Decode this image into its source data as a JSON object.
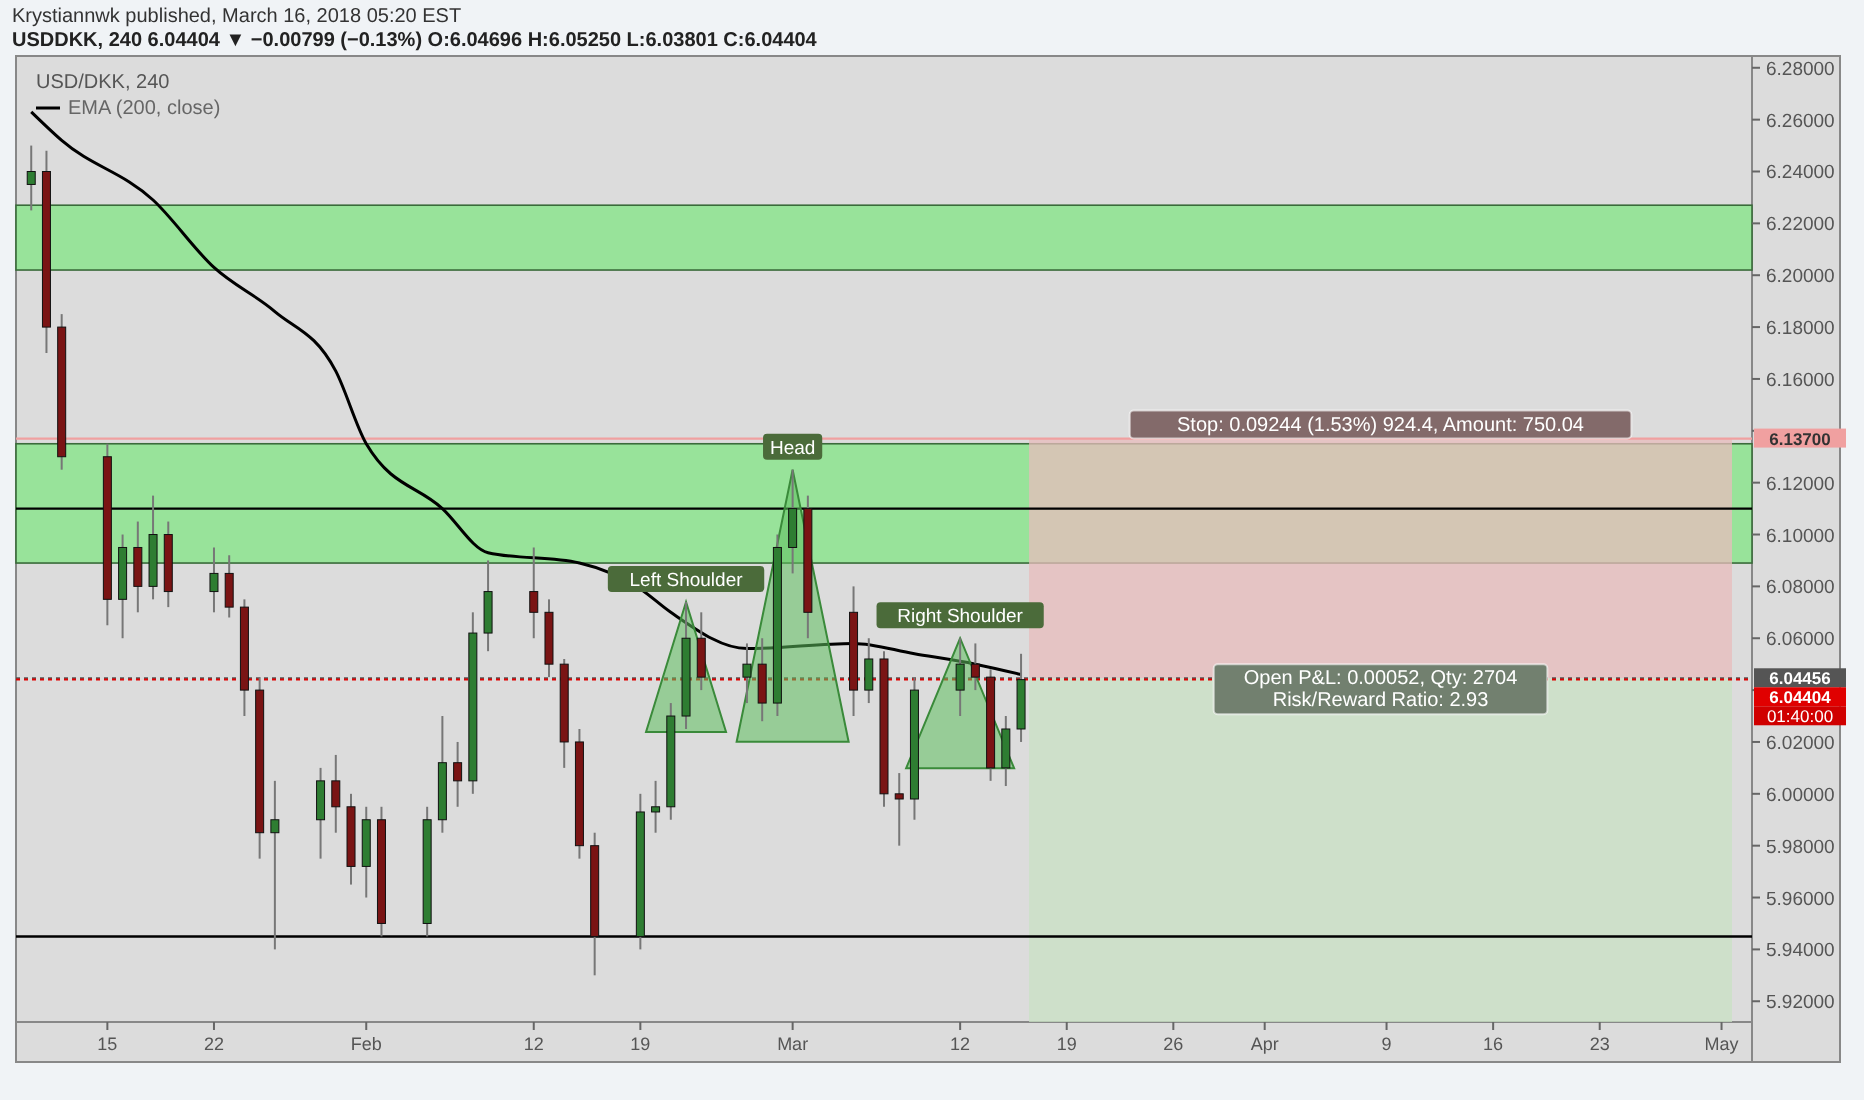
{
  "chart_data": {
    "type": "candlestick",
    "title": "Krystiannwk published, March 16, 2018 05:20 EST",
    "subtitle": "USDDKK, 240 6.04404 ▼ −0.00799 (−0.13%) O:6.04696 H:6.05250 L:6.03801 C:6.04404",
    "legend_title": "USD/DKK, 240",
    "legend": "top left",
    "grid": false,
    "x": [
      "2018-01-10",
      "2018-01-11",
      "2018-01-12",
      "2018-01-15",
      "2018-01-16",
      "2018-01-17",
      "2018-01-18",
      "2018-01-19",
      "2018-01-22",
      "2018-01-23",
      "2018-01-24",
      "2018-01-25",
      "2018-01-26",
      "2018-01-29",
      "2018-01-30",
      "2018-01-31",
      "2018-02-01",
      "2018-02-02",
      "2018-02-05",
      "2018-02-06",
      "2018-02-07",
      "2018-02-08",
      "2018-02-09",
      "2018-02-12",
      "2018-02-13",
      "2018-02-14",
      "2018-02-15",
      "2018-02-16",
      "2018-02-19",
      "2018-02-20",
      "2018-02-21",
      "2018-02-22",
      "2018-02-23",
      "2018-02-26",
      "2018-02-27",
      "2018-02-28",
      "2018-03-01",
      "2018-03-02",
      "2018-03-05",
      "2018-03-06",
      "2018-03-07",
      "2018-03-08",
      "2018-03-09",
      "2018-03-12",
      "2018-03-13",
      "2018-03-14",
      "2018-03-15",
      "2018-03-16"
    ],
    "ohlc": [
      [
        6.235,
        6.25,
        6.225,
        6.24
      ],
      [
        6.24,
        6.248,
        6.17,
        6.18
      ],
      [
        6.18,
        6.185,
        6.125,
        6.13
      ],
      [
        6.13,
        6.135,
        6.065,
        6.075
      ],
      [
        6.075,
        6.1,
        6.06,
        6.095
      ],
      [
        6.095,
        6.105,
        6.07,
        6.08
      ],
      [
        6.08,
        6.115,
        6.075,
        6.1
      ],
      [
        6.1,
        6.105,
        6.072,
        6.078
      ],
      [
        6.078,
        6.095,
        6.07,
        6.085
      ],
      [
        6.085,
        6.092,
        6.068,
        6.072
      ],
      [
        6.072,
        6.075,
        6.03,
        6.04
      ],
      [
        6.04,
        6.045,
        5.975,
        5.985
      ],
      [
        5.985,
        6.005,
        5.94,
        5.99
      ],
      [
        5.99,
        6.01,
        5.975,
        6.005
      ],
      [
        6.005,
        6.015,
        5.985,
        5.995
      ],
      [
        5.995,
        6.0,
        5.965,
        5.972
      ],
      [
        5.972,
        5.995,
        5.96,
        5.99
      ],
      [
        5.99,
        5.995,
        5.945,
        5.95
      ],
      [
        5.95,
        5.995,
        5.945,
        5.99
      ],
      [
        5.99,
        6.03,
        5.985,
        6.012
      ],
      [
        6.012,
        6.02,
        5.995,
        6.005
      ],
      [
        6.005,
        6.07,
        6.0,
        6.062
      ],
      [
        6.062,
        6.09,
        6.055,
        6.078
      ],
      [
        6.078,
        6.095,
        6.06,
        6.07
      ],
      [
        6.07,
        6.075,
        6.045,
        6.05
      ],
      [
        6.05,
        6.052,
        6.01,
        6.02
      ],
      [
        6.02,
        6.025,
        5.975,
        5.98
      ],
      [
        5.98,
        5.985,
        5.93,
        5.945
      ],
      [
        5.945,
        6.0,
        5.94,
        5.993
      ],
      [
        5.993,
        6.005,
        5.985,
        5.995
      ],
      [
        5.995,
        6.035,
        5.99,
        6.03
      ],
      [
        6.03,
        6.074,
        6.025,
        6.06
      ],
      [
        6.06,
        6.07,
        6.04,
        6.045
      ],
      [
        6.045,
        6.058,
        6.035,
        6.05
      ],
      [
        6.05,
        6.06,
        6.028,
        6.035
      ],
      [
        6.035,
        6.1,
        6.03,
        6.095
      ],
      [
        6.095,
        6.125,
        6.085,
        6.11
      ],
      [
        6.11,
        6.115,
        6.06,
        6.07
      ],
      [
        6.07,
        6.08,
        6.03,
        6.04
      ],
      [
        6.04,
        6.06,
        6.035,
        6.052
      ],
      [
        6.052,
        6.055,
        5.995,
        6.0
      ],
      [
        6.0,
        6.008,
        5.98,
        5.998
      ],
      [
        5.998,
        6.045,
        5.99,
        6.04
      ],
      [
        6.04,
        6.06,
        6.03,
        6.05
      ],
      [
        6.05,
        6.058,
        6.04,
        6.045
      ],
      [
        6.045,
        6.048,
        6.005,
        6.01
      ],
      [
        6.01,
        6.03,
        6.003,
        6.025
      ],
      [
        6.025,
        6.054,
        6.02,
        6.04404
      ]
    ],
    "series": [
      {
        "name": "EMA (200, close)",
        "type": "line",
        "color": "#000000",
        "x": [
          "2018-01-10",
          "2018-01-12",
          "2018-01-18",
          "2018-01-22",
          "2018-01-26",
          "2018-01-30",
          "2018-02-01",
          "2018-02-06",
          "2018-02-09",
          "2018-02-15",
          "2018-02-19",
          "2018-02-21",
          "2018-02-26",
          "2018-03-05",
          "2018-03-09",
          "2018-03-13",
          "2018-03-16"
        ],
        "values": [
          6.263,
          6.252,
          6.229,
          6.203,
          6.186,
          6.163,
          6.135,
          6.11,
          6.093,
          6.089,
          6.079,
          6.07,
          6.056,
          6.058,
          6.054,
          6.05,
          6.046
        ]
      }
    ],
    "xlim": [
      "2018-01-09",
      "2018-05-03"
    ],
    "xticks": [
      {
        "value": "2018-01-15",
        "label": "15"
      },
      {
        "value": "2018-01-22",
        "label": "22"
      },
      {
        "value": "2018-02-01",
        "label": "Feb"
      },
      {
        "value": "2018-02-12",
        "label": "12"
      },
      {
        "value": "2018-02-19",
        "label": "19"
      },
      {
        "value": "2018-03-01",
        "label": "Mar"
      },
      {
        "value": "2018-03-12",
        "label": "12"
      },
      {
        "value": "2018-03-19",
        "label": "19"
      },
      {
        "value": "2018-03-26",
        "label": "26"
      },
      {
        "value": "2018-04-01",
        "label": "Apr"
      },
      {
        "value": "2018-04-09",
        "label": "9"
      },
      {
        "value": "2018-04-16",
        "label": "16"
      },
      {
        "value": "2018-04-23",
        "label": "23"
      },
      {
        "value": "2018-05-01",
        "label": "May"
      }
    ],
    "ylim": [
      5.912,
      6.283
    ],
    "yticks": [
      {
        "value": 5.92,
        "label": "5.92000"
      },
      {
        "value": 5.94,
        "label": "5.94000"
      },
      {
        "value": 5.96,
        "label": "5.96000"
      },
      {
        "value": 5.98,
        "label": "5.98000"
      },
      {
        "value": 6.0,
        "label": "6.00000"
      },
      {
        "value": 6.02,
        "label": "6.02000"
      },
      {
        "value": 6.04,
        "label": null
      },
      {
        "value": 6.06,
        "label": "6.06000"
      },
      {
        "value": 6.08,
        "label": "6.08000"
      },
      {
        "value": 6.1,
        "label": "6.10000"
      },
      {
        "value": 6.12,
        "label": "6.12000"
      },
      {
        "value": 6.14,
        "label": null
      },
      {
        "value": 6.16,
        "label": "6.16000"
      },
      {
        "value": 6.18,
        "label": "6.18000"
      },
      {
        "value": 6.2,
        "label": "6.20000"
      },
      {
        "value": 6.22,
        "label": "6.22000"
      },
      {
        "value": 6.24,
        "label": "6.24000"
      },
      {
        "value": 6.26,
        "label": "6.26000"
      },
      {
        "value": 6.28,
        "label": "6.28000"
      }
    ],
    "bands": [
      {
        "axis": "y",
        "from": 6.202,
        "to": 6.227,
        "color": "#98e39a"
      },
      {
        "axis": "y",
        "from": 6.089,
        "to": 6.135,
        "color": "#98e39a"
      },
      {
        "axis": "y",
        "from": 6.04456,
        "to": 6.137,
        "color": "#e8bcbc",
        "label": "Stop: 0.09244 (1.53%) 924.4, Amount: 750.04"
      },
      {
        "axis": "y",
        "from": 5.912,
        "to": 6.04456,
        "color": "#c9e2c4",
        "label": "Open P&L: 0.00052, Qty: 2704\nRisk/Reward Ratio: 2.93"
      }
    ],
    "ref_lines": [
      {
        "axis": "y",
        "value": 6.11,
        "color": "#000000",
        "line_style": "solid"
      },
      {
        "axis": "y",
        "value": 5.945,
        "color": "#000000",
        "line_style": "solid"
      },
      {
        "axis": "y",
        "value": 6.137,
        "label": "6.13700",
        "color": "#f0a0a0",
        "line_style": "solid"
      },
      {
        "axis": "y",
        "value": 6.04456,
        "label": "6.04456",
        "color": "#555555",
        "line_style": "dotted"
      },
      {
        "axis": "y",
        "value": 6.04404,
        "label": "6.04404",
        "color": "#e00000",
        "line_style": "dotted"
      }
    ],
    "annotations": [
      "01:40:00",
      {
        "text": "Left Shoulder",
        "x": "2018-02-22",
        "y": 6.074
      },
      {
        "text": "Head",
        "x": "2018-03-01",
        "y": 6.125
      },
      {
        "text": "Right Shoulder",
        "x": "2018-03-12",
        "y": 6.06
      }
    ]
  }
}
